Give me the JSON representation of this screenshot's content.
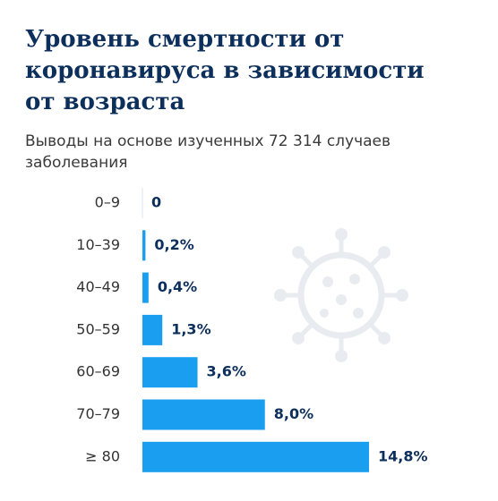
{
  "chart_data": {
    "type": "bar",
    "title": [
      "Уровень смертности от",
      "коронавируса в зависимости",
      "от возраста"
    ],
    "subtitle": [
      "Выводы на основе изученных 72 314 случаев",
      "заболевания"
    ],
    "categories": [
      "0–9",
      "10–39",
      "40–49",
      "50–59",
      "60–69",
      "70–79",
      "≥ 80"
    ],
    "values": [
      0,
      0.2,
      0.4,
      1.3,
      3.6,
      8.0,
      14.8
    ],
    "value_labels": [
      "0",
      "0,2%",
      "0,4%",
      "1,3%",
      "3,6%",
      "8,0%",
      "14,8%"
    ],
    "color": "#1a9ff0"
  }
}
